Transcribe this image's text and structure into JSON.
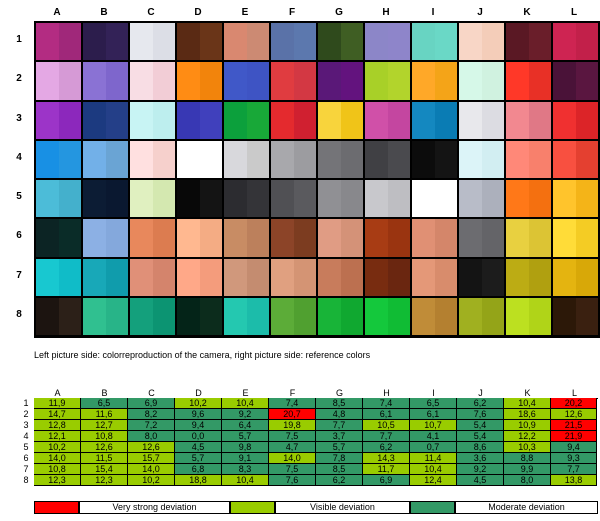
{
  "columns": [
    "A",
    "B",
    "C",
    "D",
    "E",
    "F",
    "G",
    "H",
    "I",
    "J",
    "K",
    "L"
  ],
  "rows": [
    "1",
    "2",
    "3",
    "4",
    "5",
    "6",
    "7",
    "8"
  ],
  "patches": [
    [
      [
        "#b32c82",
        "#a0287a"
      ],
      [
        "#2c1d4c",
        "#332257"
      ],
      [
        "#e6e8ee",
        "#dcdee6"
      ],
      [
        "#5a2a14",
        "#6a3518"
      ],
      [
        "#d98870",
        "#cc8a73"
      ],
      [
        "#5a72a8",
        "#5c78ae"
      ],
      [
        "#2f4a1c",
        "#3f5e23"
      ],
      [
        "#8c86c8",
        "#8e85ca"
      ],
      [
        "#68d4c2",
        "#6ad8c6"
      ],
      [
        "#f8d6c6",
        "#f4cdb9"
      ],
      [
        "#5a1824",
        "#6a1e2a"
      ],
      [
        "#ce2452",
        "#c2204a"
      ]
    ],
    [
      [
        "#e4a8e4",
        "#d69ad6"
      ],
      [
        "#8a72d4",
        "#7e66cc"
      ],
      [
        "#f8dde4",
        "#f2cdd6"
      ],
      [
        "#ff8c14",
        "#f2840c"
      ],
      [
        "#4058c8",
        "#3e54c4"
      ],
      [
        "#e03c40",
        "#d33843"
      ],
      [
        "#5a1878",
        "#63137e"
      ],
      [
        "#a8d028",
        "#b2d42c"
      ],
      [
        "#ffa828",
        "#f4a418"
      ],
      [
        "#d6f8e8",
        "#d0f2e0"
      ],
      [
        "#ff3828",
        "#e83026"
      ],
      [
        "#4a1238",
        "#5a1640"
      ]
    ],
    [
      [
        "#9c34c8",
        "#8c28bc"
      ],
      [
        "#1c3a80",
        "#243f88"
      ],
      [
        "#c8f4f4",
        "#bdeeee"
      ],
      [
        "#3838b4",
        "#4040bc"
      ],
      [
        "#0ca03c",
        "#18a838"
      ],
      [
        "#e42a2e",
        "#d02030"
      ],
      [
        "#f8d43c",
        "#f0c418"
      ],
      [
        "#d050a8",
        "#c446a0"
      ],
      [
        "#1488c0",
        "#0a7cb4"
      ],
      [
        "#e8e8ec",
        "#dcdce2"
      ],
      [
        "#f28890",
        "#e07886"
      ],
      [
        "#f03030",
        "#dc2428"
      ]
    ],
    [
      [
        "#1890e4",
        "#2496e0"
      ],
      [
        "#72b0e8",
        "#6aa4d4"
      ],
      [
        "#ffe0e0",
        "#f6d0cc"
      ],
      [
        "#ffffff",
        "#ffffff"
      ],
      [
        "#d8d8dc",
        "#cacaca"
      ],
      [
        "#a8a8ac",
        "#9c9ca0"
      ],
      [
        "#747478",
        "#6c6c70"
      ],
      [
        "#404044",
        "#4a4a4e"
      ],
      [
        "#0c0c0c",
        "#141414"
      ],
      [
        "#dcf4f8",
        "#d2eef2"
      ],
      [
        "#ff8878",
        "#f8806c"
      ],
      [
        "#f85040",
        "#e44030"
      ]
    ],
    [
      [
        "#4cbcd8",
        "#44b0cc"
      ],
      [
        "#0c1c34",
        "#0a1830"
      ],
      [
        "#e0f0c0",
        "#d4e8b0"
      ],
      [
        "#080808",
        "#141414"
      ],
      [
        "#2c2c30",
        "#343438"
      ],
      [
        "#505054",
        "#5a5a5e"
      ],
      [
        "#909094",
        "#88888c"
      ],
      [
        "#c8c8cc",
        "#bebec2"
      ],
      [
        "#ffffff",
        "#ffffff"
      ],
      [
        "#b8bcc8",
        "#acb0bc"
      ],
      [
        "#ff7818",
        "#f47010"
      ],
      [
        "#ffc42c",
        "#f4b418"
      ]
    ],
    [
      [
        "#0c2424",
        "#0a2c28"
      ],
      [
        "#8cb0e4",
        "#84a8dc"
      ],
      [
        "#e8885c",
        "#dc7c50"
      ],
      [
        "#ffb890",
        "#f4ac84"
      ],
      [
        "#c88c64",
        "#bc805c"
      ],
      [
        "#8c4428",
        "#7c3c20"
      ],
      [
        "#e09c84",
        "#d49278"
      ],
      [
        "#a83c14",
        "#9a3410"
      ],
      [
        "#e09074",
        "#d4866a"
      ],
      [
        "#6c6c70",
        "#646468"
      ],
      [
        "#e8d040",
        "#dcc434"
      ],
      [
        "#ffdc38",
        "#f4cc24"
      ]
    ],
    [
      [
        "#18c8d0",
        "#10bcc8"
      ],
      [
        "#18a8b8",
        "#109cac"
      ],
      [
        "#e09078",
        "#d4846c"
      ],
      [
        "#ffa888",
        "#f49c7c"
      ],
      [
        "#d0987c",
        "#c48c70"
      ],
      [
        "#e0a080",
        "#d49474"
      ],
      [
        "#c87c5c",
        "#bc7050"
      ],
      [
        "#782c10",
        "#6a2610"
      ],
      [
        "#e49878",
        "#d88c6c"
      ],
      [
        "#141414",
        "#1c1c1c"
      ],
      [
        "#bcac14",
        "#b0a010"
      ],
      [
        "#e4b410",
        "#d8a808"
      ]
    ],
    [
      [
        "#1c1410",
        "#2c2018"
      ],
      [
        "#30c090",
        "#28b488"
      ],
      [
        "#14a07c",
        "#0c9472"
      ],
      [
        "#042418",
        "#0c2c1c"
      ],
      [
        "#24c8b0",
        "#1cbcaa"
      ],
      [
        "#5cac38",
        "#50a030"
      ],
      [
        "#18b438",
        "#10a830"
      ],
      [
        "#14c83c",
        "#10bc34"
      ],
      [
        "#c08c38",
        "#b48030"
      ],
      [
        "#a0b020",
        "#94a418"
      ],
      [
        "#bce020",
        "#b0d418"
      ],
      [
        "#2c1808",
        "#3a2010"
      ]
    ]
  ],
  "caption": "Left picture side: colorreproduction of the camera, right picture side: reference colors",
  "deviation_table": {
    "headers": [
      "A",
      "B",
      "C",
      "D",
      "E",
      "F",
      "G",
      "H",
      "I",
      "J",
      "K",
      "L"
    ],
    "row_labels": [
      "1",
      "2",
      "3",
      "4",
      "5",
      "6",
      "7",
      "8"
    ],
    "values": [
      [
        "11,9",
        "6,5",
        "6,9",
        "10,2",
        "10,4",
        "7,4",
        "8,5",
        "7,4",
        "6,5",
        "6,2",
        "10,4",
        "20,2"
      ],
      [
        "14,7",
        "11,6",
        "8,2",
        "9,6",
        "9,2",
        "20,7",
        "4,8",
        "6,1",
        "6,1",
        "7,6",
        "18,6",
        "12,6"
      ],
      [
        "12,8",
        "12,7",
        "7,2",
        "9,4",
        "6,4",
        "19,8",
        "7,7",
        "10,5",
        "10,7",
        "5,4",
        "10,9",
        "21,5"
      ],
      [
        "12,1",
        "10,8",
        "8,0",
        "0,0",
        "5,7",
        "7,5",
        "3,7",
        "7,7",
        "4,1",
        "5,4",
        "12,2",
        "21,9"
      ],
      [
        "10,2",
        "12,6",
        "12,6",
        "4,5",
        "9,8",
        "4,7",
        "5,7",
        "6,2",
        "0,7",
        "8,6",
        "10,3",
        "9,4"
      ],
      [
        "14,0",
        "11,5",
        "15,7",
        "5,7",
        "9,1",
        "14,0",
        "7,8",
        "14,3",
        "11,4",
        "3,6",
        "8,8",
        "9,3"
      ],
      [
        "10,8",
        "15,4",
        "14,0",
        "6,8",
        "8,3",
        "7,5",
        "8,5",
        "11,7",
        "10,4",
        "9,2",
        "9,9",
        "7,7"
      ],
      [
        "12,3",
        "12,3",
        "10,2",
        "18,8",
        "10,4",
        "7,6",
        "6,2",
        "6,9",
        "12,4",
        "4,5",
        "8,0",
        "13,8"
      ]
    ],
    "levels": [
      [
        "lime",
        "green",
        "green",
        "lime",
        "lime",
        "green",
        "green",
        "green",
        "green",
        "green",
        "lime",
        "red"
      ],
      [
        "lime",
        "lime",
        "green",
        "green",
        "green",
        "red",
        "green",
        "green",
        "green",
        "green",
        "lime",
        "lime"
      ],
      [
        "lime",
        "lime",
        "green",
        "green",
        "green",
        "lime",
        "green",
        "lime",
        "lime",
        "green",
        "lime",
        "red"
      ],
      [
        "lime",
        "lime",
        "green",
        "green",
        "green",
        "green",
        "green",
        "green",
        "green",
        "green",
        "lime",
        "red"
      ],
      [
        "lime",
        "lime",
        "lime",
        "green",
        "green",
        "green",
        "green",
        "green",
        "green",
        "green",
        "lime",
        "green"
      ],
      [
        "lime",
        "lime",
        "lime",
        "green",
        "green",
        "lime",
        "green",
        "lime",
        "lime",
        "green",
        "green",
        "green"
      ],
      [
        "lime",
        "lime",
        "lime",
        "green",
        "green",
        "green",
        "green",
        "lime",
        "lime",
        "green",
        "green",
        "green"
      ],
      [
        "lime",
        "lime",
        "lime",
        "lime",
        "lime",
        "green",
        "green",
        "green",
        "lime",
        "green",
        "green",
        "lime"
      ]
    ]
  },
  "legend": {
    "very_strong": "Very strong deviation",
    "visible": "Visible deviation",
    "moderate": "Moderate deviation"
  },
  "colors": {
    "very_strong": "#ff0000",
    "visible": "#99cc00",
    "moderate": "#339966"
  }
}
